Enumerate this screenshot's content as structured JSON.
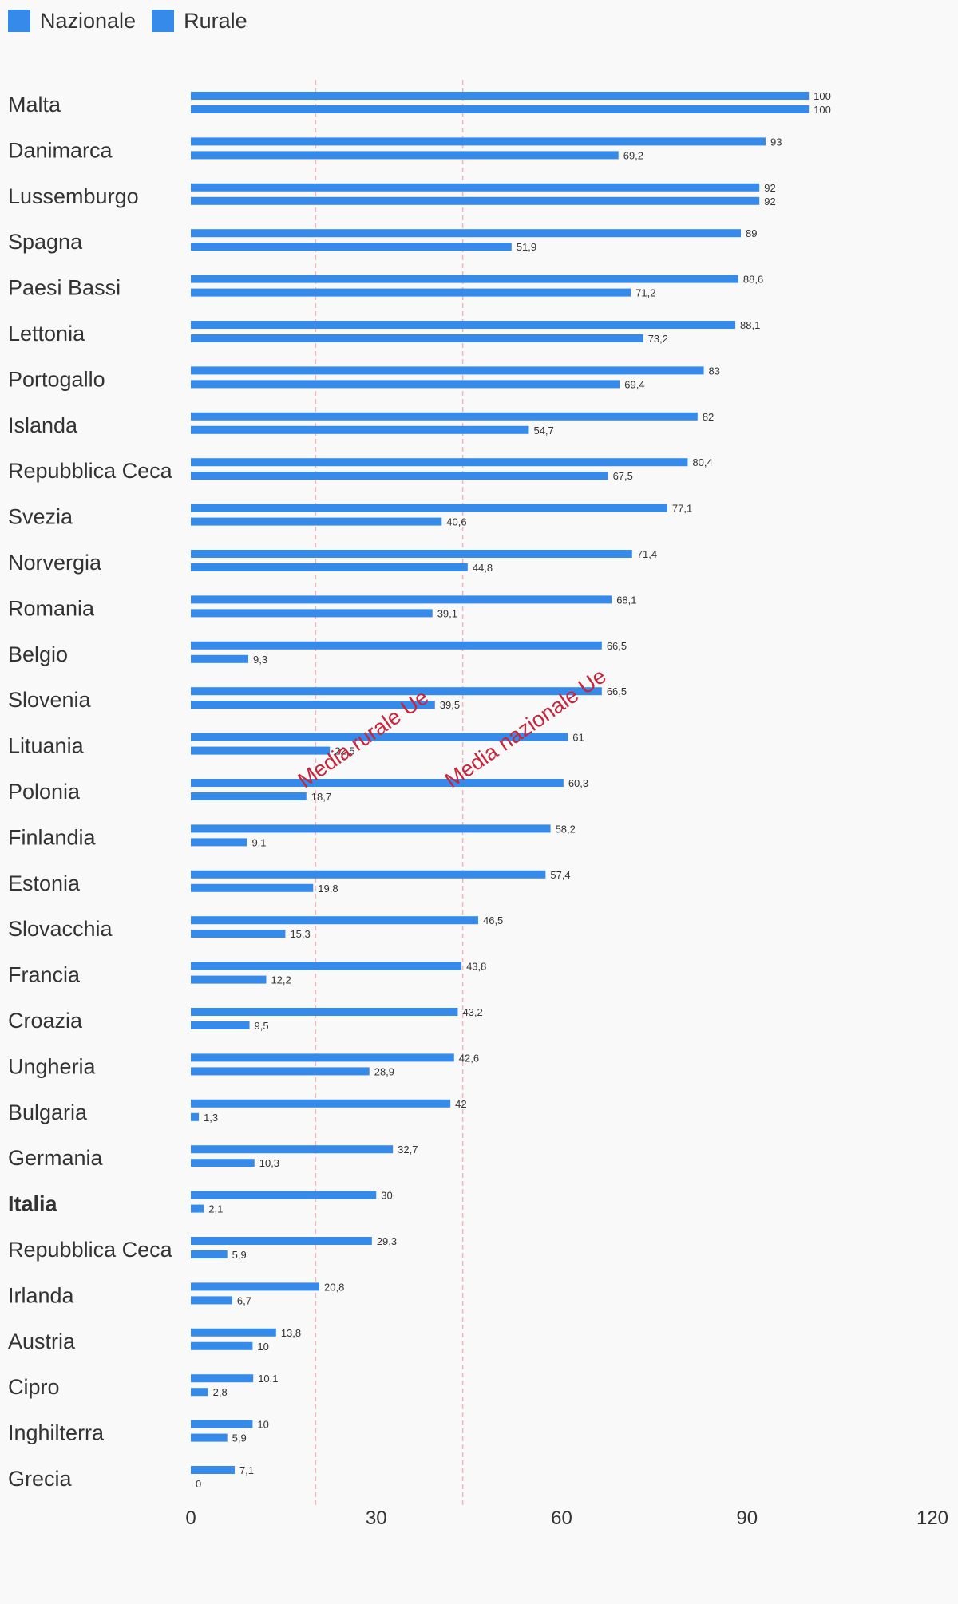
{
  "legend": [
    {
      "name": "Nazionale",
      "color": "#368bea"
    },
    {
      "name": "Rurale",
      "color": "#368bea"
    }
  ],
  "colors": {
    "bar": "#368bea",
    "reference": "#c8243c",
    "reference_line": "#f4b4bc",
    "text": "#333333"
  },
  "chart_data": {
    "type": "bar",
    "orientation": "horizontal",
    "categories": [
      "Malta",
      "Danimarca",
      "Lussemburgo",
      "Spagna",
      "Paesi Bassi",
      "Lettonia",
      "Portogallo",
      "Islanda",
      "Repubblica Ceca",
      "Svezia",
      "Norvergia",
      "Romania",
      "Belgio",
      "Slovenia",
      "Lituania",
      "Polonia",
      "Finlandia",
      "Estonia",
      "Slovacchia",
      "Francia",
      "Croazia",
      "Ungheria",
      "Bulgaria",
      "Germania",
      "Italia",
      "Repubblica Ceca",
      "Irlanda",
      "Austria",
      "Cipro",
      "Inghilterra",
      "Grecia"
    ],
    "highlight": "Italia",
    "series": [
      {
        "name": "Nazionale",
        "values": [
          100,
          93,
          92,
          89,
          88.6,
          88.1,
          83,
          82,
          80.4,
          77.1,
          71.4,
          68.1,
          66.5,
          66.5,
          61,
          60.3,
          58.2,
          57.4,
          46.5,
          43.8,
          43.2,
          42.6,
          42,
          32.7,
          30,
          29.3,
          20.8,
          13.8,
          10.1,
          10,
          7.1
        ]
      },
      {
        "name": "Rurale",
        "values": [
          100,
          69.2,
          92,
          51.9,
          71.2,
          73.2,
          69.4,
          54.7,
          67.5,
          40.6,
          44.8,
          39.1,
          9.3,
          39.5,
          22.5,
          18.7,
          9.1,
          19.8,
          15.3,
          12.2,
          9.5,
          28.9,
          1.3,
          10.3,
          2.1,
          5.9,
          6.7,
          10,
          2.8,
          5.9,
          0
        ]
      }
    ],
    "value_labels": {
      "Nazionale": [
        "100",
        "93",
        "92",
        "89",
        "88,6",
        "88,1",
        "83",
        "82",
        "80,4",
        "77,1",
        "71,4",
        "68,1",
        "66,5",
        "66,5",
        "61",
        "60,3",
        "58,2",
        "57,4",
        "46,5",
        "43,8",
        "43,2",
        "42,6",
        "42",
        "32,7",
        "30",
        "29,3",
        "20,8",
        "13,8",
        "10,1",
        "10",
        "7,1"
      ],
      "Rurale": [
        "100",
        "69,2",
        "92",
        "51,9",
        "71,2",
        "73,2",
        "69,4",
        "54,7",
        "67,5",
        "40,6",
        "44,8",
        "39,1",
        "9,3",
        "39,5",
        "22,5",
        "18,7",
        "9,1",
        "19,8",
        "15,3",
        "12,2",
        "9,5",
        "28,9",
        "1,3",
        "10,3",
        "2,1",
        "5,9",
        "6,7",
        "10",
        "2,8",
        "5,9",
        "0"
      ]
    },
    "x_ticks": [
      "0",
      "30",
      "60",
      "90",
      "120"
    ],
    "xlim": [
      0,
      120
    ],
    "reference_lines": [
      {
        "label": "Media rurale Ue",
        "value": 20.2
      },
      {
        "label": "Media nazionale Ue",
        "value": 44
      }
    ],
    "grid": false,
    "legend_position": "top-left"
  }
}
